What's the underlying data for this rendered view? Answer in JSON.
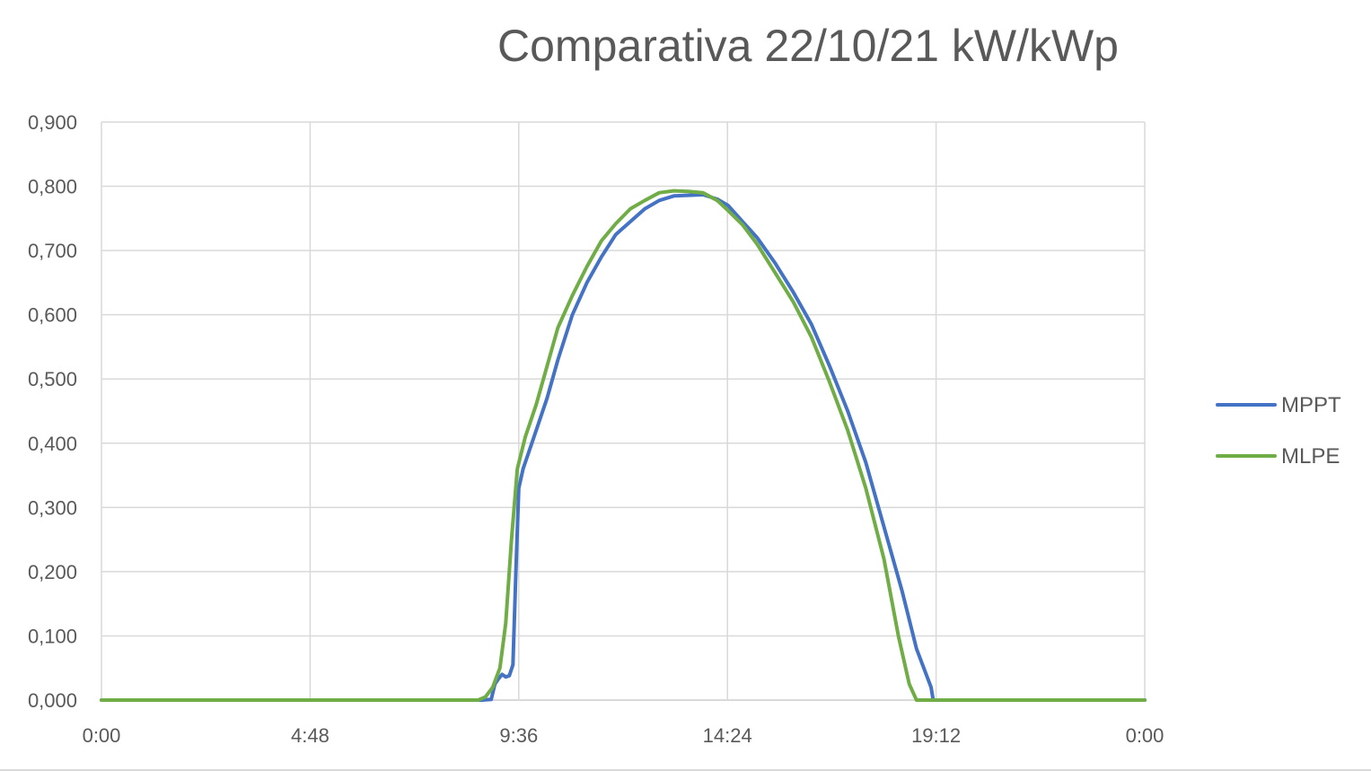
{
  "chart_data": {
    "type": "line",
    "title": "Comparativa 22/10/21 kW/kWp",
    "xlabel": "",
    "ylabel": "",
    "x_ticks": [
      "0:00",
      "4:48",
      "9:36",
      "14:24",
      "19:12",
      "0:00"
    ],
    "y_ticks": [
      "0,000",
      "0,100",
      "0,200",
      "0,300",
      "0,400",
      "0,500",
      "0,600",
      "0,700",
      "0,800",
      "0,900"
    ],
    "xlim": [
      "0:00",
      "24:00"
    ],
    "ylim": [
      0,
      0.9
    ],
    "grid": true,
    "legend_position": "right",
    "series": [
      {
        "name": "MPPT",
        "color": "#4472C4",
        "points": [
          [
            "0:00",
            0
          ],
          [
            "8:45",
            0
          ],
          [
            "8:58",
            0.001
          ],
          [
            "9:03",
            0.025
          ],
          [
            "9:08",
            0.033
          ],
          [
            "9:13",
            0.04
          ],
          [
            "9:18",
            0.036
          ],
          [
            "9:23",
            0.038
          ],
          [
            "9:28",
            0.055
          ],
          [
            "9:32",
            0.2
          ],
          [
            "9:36",
            0.33
          ],
          [
            "9:42",
            0.36
          ],
          [
            "10:00",
            0.42
          ],
          [
            "10:15",
            0.47
          ],
          [
            "10:30",
            0.53
          ],
          [
            "10:50",
            0.6
          ],
          [
            "11:10",
            0.65
          ],
          [
            "11:30",
            0.69
          ],
          [
            "11:50",
            0.725
          ],
          [
            "12:10",
            0.745
          ],
          [
            "12:30",
            0.765
          ],
          [
            "12:50",
            0.778
          ],
          [
            "13:10",
            0.785
          ],
          [
            "13:30",
            0.786
          ],
          [
            "13:50",
            0.787
          ],
          [
            "14:10",
            0.78
          ],
          [
            "14:25",
            0.77
          ],
          [
            "14:45",
            0.745
          ],
          [
            "15:05",
            0.72
          ],
          [
            "15:30",
            0.68
          ],
          [
            "15:55",
            0.635
          ],
          [
            "16:20",
            0.585
          ],
          [
            "16:45",
            0.52
          ],
          [
            "17:10",
            0.45
          ],
          [
            "17:35",
            0.37
          ],
          [
            "18:00",
            0.27
          ],
          [
            "18:25",
            0.17
          ],
          [
            "18:45",
            0.08
          ],
          [
            "19:05",
            0.02
          ],
          [
            "19:08",
            0
          ],
          [
            "24:00",
            0
          ]
        ]
      },
      {
        "name": "MLPE",
        "color": "#70AD47",
        "points": [
          [
            "0:00",
            0
          ],
          [
            "8:40",
            0
          ],
          [
            "8:50",
            0.005
          ],
          [
            "9:00",
            0.02
          ],
          [
            "9:10",
            0.05
          ],
          [
            "9:18",
            0.12
          ],
          [
            "9:26",
            0.25
          ],
          [
            "9:34",
            0.36
          ],
          [
            "9:45",
            0.41
          ],
          [
            "10:00",
            0.46
          ],
          [
            "10:15",
            0.52
          ],
          [
            "10:30",
            0.58
          ],
          [
            "10:50",
            0.63
          ],
          [
            "11:10",
            0.675
          ],
          [
            "11:30",
            0.715
          ],
          [
            "11:50",
            0.742
          ],
          [
            "12:10",
            0.765
          ],
          [
            "12:30",
            0.778
          ],
          [
            "12:50",
            0.79
          ],
          [
            "13:10",
            0.793
          ],
          [
            "13:30",
            0.792
          ],
          [
            "13:50",
            0.79
          ],
          [
            "14:10",
            0.778
          ],
          [
            "14:25",
            0.762
          ],
          [
            "14:45",
            0.74
          ],
          [
            "15:05",
            0.71
          ],
          [
            "15:30",
            0.665
          ],
          [
            "15:55",
            0.62
          ],
          [
            "16:20",
            0.565
          ],
          [
            "16:45",
            0.495
          ],
          [
            "17:10",
            0.42
          ],
          [
            "17:35",
            0.33
          ],
          [
            "18:00",
            0.22
          ],
          [
            "18:20",
            0.1
          ],
          [
            "18:35",
            0.025
          ],
          [
            "18:45",
            0
          ],
          [
            "24:00",
            0
          ]
        ]
      }
    ]
  }
}
